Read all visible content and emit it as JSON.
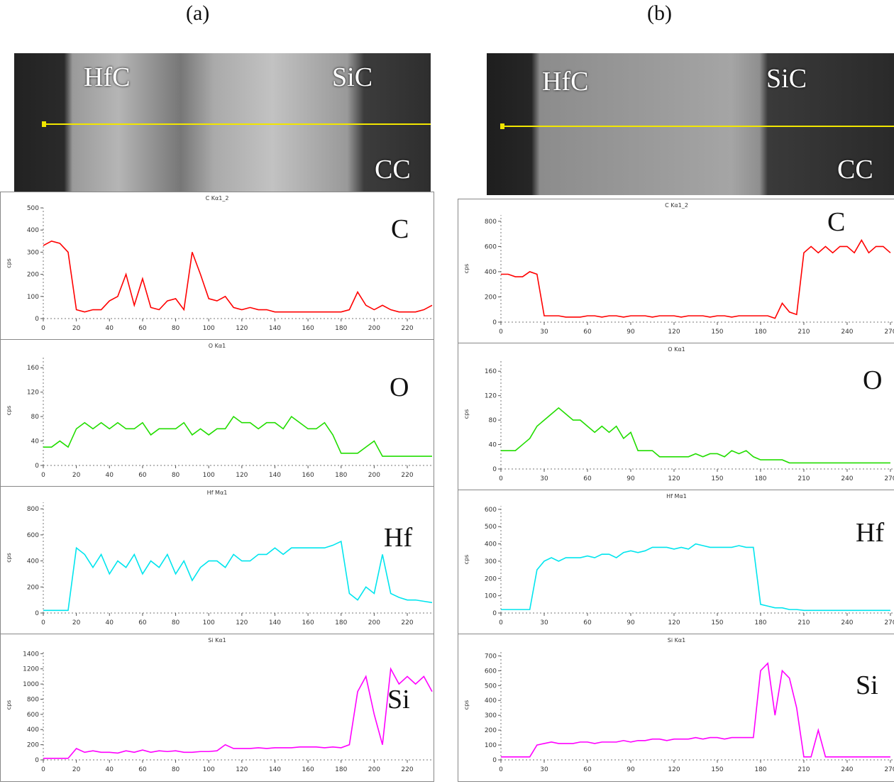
{
  "panels": [
    {
      "label": "(a)",
      "image_labels": [
        "HfC",
        "SiC",
        "CC"
      ]
    },
    {
      "label": "(b)",
      "image_labels": [
        "HfC",
        "SiC",
        "CC"
      ]
    }
  ],
  "colors": {
    "C": "#ff0000",
    "O": "#22dd00",
    "Hf": "#00e5ee",
    "Si": "#ff00ff",
    "scan_line": "#f2e600"
  },
  "chart_data": [
    {
      "type": "line",
      "panel": "a",
      "title": "C Kα1_2",
      "element": "C",
      "ylabel": "cps",
      "xlim": [
        0,
        235
      ],
      "ylim": [
        0,
        500
      ],
      "xticks": [
        0,
        20,
        40,
        60,
        80,
        100,
        120,
        140,
        160,
        180,
        200,
        220
      ],
      "yticks": [
        0,
        100,
        200,
        300,
        400,
        500
      ],
      "x_step": 5,
      "values": [
        330,
        350,
        340,
        300,
        40,
        30,
        40,
        40,
        80,
        100,
        200,
        60,
        180,
        50,
        40,
        80,
        90,
        40,
        300,
        200,
        90,
        80,
        100,
        50,
        40,
        50,
        40,
        40,
        30,
        30,
        30,
        30,
        30,
        30,
        30,
        30,
        30,
        40,
        120,
        60,
        40,
        60,
        40,
        30,
        30,
        30,
        40,
        60
      ]
    },
    {
      "type": "line",
      "panel": "a",
      "title": "O Kα1",
      "element": "O",
      "ylabel": "cps",
      "xlim": [
        0,
        235
      ],
      "ylim": [
        0,
        180
      ],
      "xticks": [
        0,
        20,
        40,
        60,
        80,
        100,
        120,
        140,
        160,
        180,
        200,
        220
      ],
      "yticks": [
        0,
        40,
        80,
        120,
        160
      ],
      "x_step": 5,
      "values": [
        30,
        30,
        40,
        30,
        60,
        70,
        60,
        70,
        60,
        70,
        60,
        60,
        70,
        50,
        60,
        60,
        60,
        70,
        50,
        60,
        50,
        60,
        60,
        80,
        70,
        70,
        60,
        70,
        70,
        60,
        80,
        70,
        60,
        60,
        70,
        50,
        20,
        20,
        20,
        30,
        40,
        15,
        15,
        15,
        15,
        15,
        15,
        15
      ]
    },
    {
      "type": "line",
      "panel": "a",
      "title": "Hf Mα1",
      "element": "Hf",
      "ylabel": "cps",
      "xlim": [
        0,
        235
      ],
      "ylim": [
        0,
        850
      ],
      "xticks": [
        0,
        20,
        40,
        60,
        80,
        100,
        120,
        140,
        160,
        180,
        200,
        220
      ],
      "yticks": [
        0,
        200,
        400,
        600,
        800
      ],
      "x_step": 5,
      "values": [
        20,
        20,
        20,
        20,
        500,
        450,
        350,
        450,
        300,
        400,
        350,
        450,
        300,
        400,
        350,
        450,
        300,
        400,
        250,
        350,
        400,
        400,
        350,
        450,
        400,
        400,
        450,
        450,
        500,
        450,
        500,
        500,
        500,
        500,
        500,
        520,
        550,
        150,
        100,
        200,
        150,
        450,
        150,
        120,
        100,
        100,
        90,
        80
      ]
    },
    {
      "type": "line",
      "panel": "a",
      "title": "Si Kα1",
      "element": "Si",
      "ylabel": "cps",
      "xlim": [
        0,
        235
      ],
      "ylim": [
        0,
        1450
      ],
      "xticks": [
        0,
        20,
        40,
        60,
        80,
        100,
        120,
        140,
        160,
        180,
        200,
        220
      ],
      "yticks": [
        0,
        200,
        400,
        600,
        800,
        1000,
        1200,
        1400
      ],
      "x_step": 5,
      "values": [
        20,
        20,
        20,
        20,
        150,
        100,
        120,
        100,
        100,
        90,
        120,
        100,
        130,
        100,
        120,
        110,
        120,
        100,
        100,
        110,
        110,
        120,
        200,
        150,
        150,
        150,
        160,
        150,
        160,
        160,
        160,
        170,
        170,
        170,
        160,
        170,
        160,
        200,
        900,
        1100,
        600,
        200,
        1200,
        1000,
        1100,
        1000,
        1100,
        900
      ]
    },
    {
      "type": "line",
      "panel": "b",
      "title": "C Kα1_2",
      "element": "C",
      "ylabel": "cps",
      "xlim": [
        0,
        272
      ],
      "ylim": [
        0,
        850
      ],
      "xticks": [
        0,
        30,
        60,
        90,
        120,
        150,
        180,
        210,
        240,
        270
      ],
      "yticks": [
        0,
        200,
        400,
        600,
        800
      ],
      "x_step": 5,
      "values": [
        380,
        380,
        360,
        360,
        400,
        380,
        50,
        50,
        50,
        40,
        40,
        40,
        50,
        50,
        40,
        50,
        50,
        40,
        50,
        50,
        50,
        40,
        50,
        50,
        50,
        40,
        50,
        50,
        50,
        40,
        50,
        50,
        40,
        50,
        50,
        50,
        50,
        50,
        30,
        150,
        80,
        60,
        550,
        600,
        550,
        600,
        550,
        600,
        600,
        550,
        650,
        550,
        600,
        600,
        550
      ]
    },
    {
      "type": "line",
      "panel": "b",
      "title": "O Kα1",
      "element": "O",
      "ylabel": "cps",
      "xlim": [
        0,
        272
      ],
      "ylim": [
        0,
        180
      ],
      "xticks": [
        0,
        30,
        60,
        90,
        120,
        150,
        180,
        210,
        240,
        270
      ],
      "yticks": [
        0,
        40,
        80,
        120,
        160
      ],
      "x_step": 5,
      "values": [
        30,
        30,
        30,
        40,
        50,
        70,
        80,
        90,
        100,
        90,
        80,
        80,
        70,
        60,
        70,
        60,
        70,
        50,
        60,
        30,
        30,
        30,
        20,
        20,
        20,
        20,
        20,
        25,
        20,
        25,
        25,
        20,
        30,
        25,
        30,
        20,
        15,
        15,
        15,
        15,
        10,
        10,
        10,
        10,
        10,
        10,
        10,
        10,
        10,
        10,
        10,
        10,
        10,
        10,
        10
      ]
    },
    {
      "type": "line",
      "panel": "b",
      "title": "Hf Mα1",
      "element": "Hf",
      "ylabel": "cps",
      "xlim": [
        0,
        272
      ],
      "ylim": [
        0,
        620
      ],
      "xticks": [
        0,
        30,
        60,
        90,
        120,
        150,
        180,
        210,
        240,
        270
      ],
      "yticks": [
        0,
        100,
        200,
        300,
        400,
        500,
        600
      ],
      "x_step": 5,
      "values": [
        20,
        20,
        20,
        20,
        20,
        250,
        300,
        320,
        300,
        320,
        320,
        320,
        330,
        320,
        340,
        340,
        320,
        350,
        360,
        350,
        360,
        380,
        380,
        380,
        370,
        380,
        370,
        400,
        390,
        380,
        380,
        380,
        380,
        390,
        380,
        380,
        50,
        40,
        30,
        30,
        20,
        20,
        15,
        15,
        15,
        15,
        15,
        15,
        15,
        15,
        15,
        15,
        15,
        15,
        15
      ]
    },
    {
      "type": "line",
      "panel": "b",
      "title": "Si Kα1",
      "element": "Si",
      "ylabel": "cps",
      "xlim": [
        0,
        272
      ],
      "ylim": [
        0,
        740
      ],
      "xticks": [
        0,
        30,
        60,
        90,
        120,
        150,
        180,
        210,
        240,
        270
      ],
      "yticks": [
        0,
        100,
        200,
        300,
        400,
        500,
        600,
        700
      ],
      "x_step": 5,
      "values": [
        20,
        20,
        20,
        20,
        20,
        100,
        110,
        120,
        110,
        110,
        110,
        120,
        120,
        110,
        120,
        120,
        120,
        130,
        120,
        130,
        130,
        140,
        140,
        130,
        140,
        140,
        140,
        150,
        140,
        150,
        150,
        140,
        150,
        150,
        150,
        150,
        600,
        650,
        300,
        600,
        550,
        350,
        20,
        20,
        200,
        20,
        20,
        20,
        20,
        20,
        20,
        20,
        20,
        20,
        20
      ]
    }
  ]
}
